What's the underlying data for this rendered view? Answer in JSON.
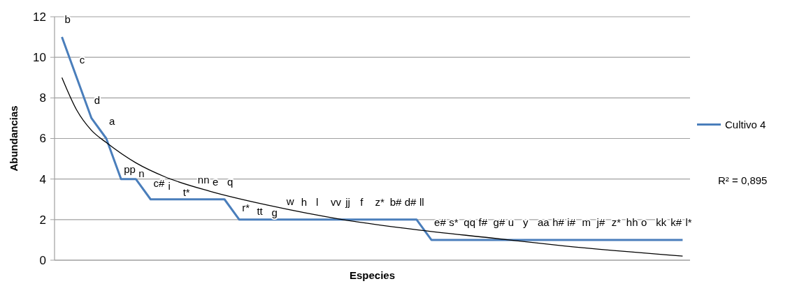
{
  "chart_data": {
    "type": "line",
    "xlabel": "Especies",
    "ylabel": "Abundancias",
    "categories": [
      null,
      null,
      null,
      null,
      null,
      null,
      null,
      null,
      null,
      null,
      null,
      null,
      null,
      null,
      null,
      null,
      null,
      null,
      null,
      null,
      null,
      null,
      null,
      null,
      null,
      null,
      null,
      null,
      null,
      null,
      null,
      null,
      null,
      null,
      null,
      null,
      null,
      null,
      null,
      null,
      null,
      null,
      null
    ],
    "series": [
      {
        "name": "Cultivo 4",
        "color": "#4a7ebb",
        "values": [
          11,
          9,
          7,
          6,
          4,
          4,
          3,
          3,
          3,
          3,
          3,
          3,
          2,
          2,
          2,
          2,
          2,
          2,
          2,
          2,
          2,
          2,
          2,
          2,
          2,
          1,
          1,
          1,
          1,
          1,
          1,
          1,
          1,
          1,
          1,
          1,
          1,
          1,
          1,
          1,
          1,
          1,
          1
        ],
        "value_labels": [
          "b",
          "c",
          "d",
          "a",
          "pp",
          "n",
          "c#",
          "i",
          "t*",
          "nn",
          "e",
          "q",
          "r*",
          "tt",
          "g",
          "w",
          "h",
          "l",
          "vv",
          "jj",
          "f",
          "z*",
          "b#",
          "d#",
          "ll",
          "e#",
          "s*",
          "qq",
          "f#",
          "g#",
          "u",
          "y",
          "aa",
          "h#",
          "i#",
          "m",
          "j#",
          "z*",
          "hh",
          "o",
          "kk",
          "k#",
          "l*"
        ]
      },
      {
        "type": "line",
        "color": "#000000",
        "values": [
          9,
          7.4,
          6.4,
          5.8,
          null,
          4.8,
          null,
          4.1,
          null,
          null,
          3.4,
          null,
          null,
          null,
          2.7,
          null,
          null,
          null,
          null,
          2.0,
          null,
          null,
          null,
          null,
          1.5,
          null,
          null,
          null,
          null,
          1.1,
          null,
          null,
          null,
          null,
          0.7,
          null,
          null,
          null,
          null,
          null,
          null,
          null,
          0.2
        ]
      }
    ],
    "ylim": [
      0,
      12
    ],
    "yticks": [
      0,
      2,
      4,
      6,
      8,
      10,
      12
    ],
    "grid": "y",
    "legend": "right",
    "tick_labels": "y",
    "annotations": [
      "R² = 0,895"
    ]
  }
}
